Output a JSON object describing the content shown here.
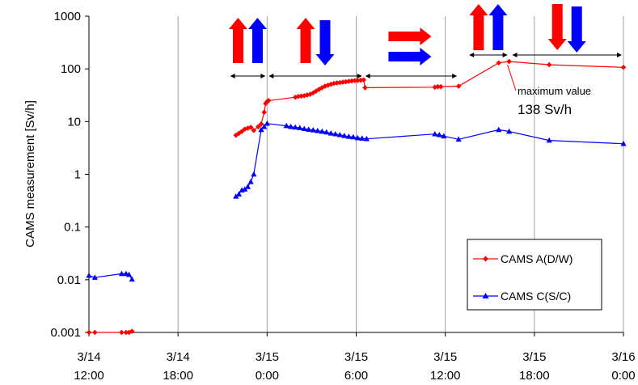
{
  "chart_data": {
    "type": "line",
    "title": "",
    "xlabel": "",
    "ylabel": "CAMS measurement  [Sv/h]",
    "yscale": "log",
    "ylim": [
      0.001,
      1000
    ],
    "xlim": [
      "3/14 12:00",
      "3/16 0:00"
    ],
    "grid": {
      "vertical": true,
      "horizontal": false
    },
    "legend_position": "bottom-right",
    "y_ticks": [
      "1000",
      "100",
      "10",
      "1",
      "0.1",
      "0.01",
      "0.001"
    ],
    "x_ticks": [
      {
        "date": "3/14",
        "time": "12:00",
        "hour": 0
      },
      {
        "date": "3/14",
        "time": "18:00",
        "hour": 6
      },
      {
        "date": "3/15",
        "time": "0:00",
        "hour": 12
      },
      {
        "date": "3/15",
        "time": "6:00",
        "hour": 18
      },
      {
        "date": "3/15",
        "time": "12:00",
        "hour": 24
      },
      {
        "date": "3/15",
        "time": "18:00",
        "hour": 30
      },
      {
        "date": "3/16",
        "time": "0:00",
        "hour": 36
      }
    ],
    "series": [
      {
        "name": "CAMS A(D/W)",
        "color": "#ff0000",
        "marker": "diamond",
        "segments": [
          [
            [
              0.0,
              0.001
            ],
            [
              0.4,
              0.001
            ],
            [
              2.2,
              0.001
            ],
            [
              2.5,
              0.001
            ],
            [
              2.7,
              0.001
            ],
            [
              2.9,
              0.00105
            ]
          ],
          [
            [
              9.9,
              5.5
            ],
            [
              10.1,
              6.0
            ],
            [
              10.3,
              6.5
            ],
            [
              10.5,
              7.2
            ],
            [
              10.7,
              7.5
            ],
            [
              10.9,
              7.8
            ],
            [
              11.1,
              6.8
            ],
            [
              11.4,
              8.0
            ],
            [
              11.6,
              9.0
            ],
            [
              11.8,
              15.0
            ],
            [
              11.9,
              22.0
            ],
            [
              12.0,
              24.0
            ],
            [
              12.1,
              25.0
            ],
            [
              13.9,
              29.0
            ],
            [
              14.1,
              30.0
            ],
            [
              14.3,
              30.5
            ],
            [
              14.5,
              31.0
            ],
            [
              14.7,
              32.0
            ],
            [
              14.9,
              33.0
            ],
            [
              15.1,
              35.0
            ],
            [
              15.3,
              38.0
            ],
            [
              15.5,
              41.0
            ],
            [
              15.7,
              44.0
            ],
            [
              15.9,
              47.0
            ],
            [
              16.1,
              49.0
            ],
            [
              16.3,
              51.0
            ],
            [
              16.5,
              53.0
            ],
            [
              16.7,
              54.0
            ],
            [
              16.9,
              55.0
            ],
            [
              17.1,
              56.0
            ],
            [
              17.3,
              57.0
            ],
            [
              17.5,
              58.0
            ],
            [
              17.7,
              59.0
            ],
            [
              17.9,
              60.0
            ],
            [
              18.1,
              60.5
            ],
            [
              18.3,
              61.0
            ],
            [
              18.5,
              62.0
            ],
            [
              18.6,
              44.0
            ],
            [
              23.3,
              45.0
            ],
            [
              23.5,
              46.0
            ],
            [
              23.7,
              46.0
            ],
            [
              24.9,
              47.0
            ],
            [
              27.6,
              130.0
            ],
            [
              28.3,
              138.0
            ],
            [
              31.0,
              120.0
            ],
            [
              36.0,
              107.0
            ]
          ]
        ]
      },
      {
        "name": "CAMS C(S/C)",
        "color": "#0000ff",
        "marker": "triangle",
        "segments": [
          [
            [
              0.0,
              0.012
            ],
            [
              0.4,
              0.011
            ],
            [
              2.2,
              0.013
            ],
            [
              2.5,
              0.013
            ],
            [
              2.7,
              0.0125
            ],
            [
              2.9,
              0.0102
            ]
          ],
          [
            [
              9.9,
              0.38
            ],
            [
              10.1,
              0.42
            ],
            [
              10.3,
              0.5
            ],
            [
              10.5,
              0.52
            ],
            [
              10.7,
              0.58
            ],
            [
              10.9,
              0.72
            ],
            [
              11.1,
              1.0
            ],
            [
              11.6,
              7.0
            ],
            [
              11.8,
              8.0
            ],
            [
              12.0,
              9.2
            ],
            [
              13.3,
              8.3
            ],
            [
              13.6,
              8.0
            ],
            [
              13.9,
              7.8
            ],
            [
              14.2,
              7.6
            ],
            [
              14.5,
              7.3
            ],
            [
              14.8,
              7.1
            ],
            [
              15.1,
              6.9
            ],
            [
              15.4,
              6.7
            ],
            [
              15.7,
              6.5
            ],
            [
              16.0,
              6.3
            ],
            [
              16.3,
              6.0
            ],
            [
              16.6,
              5.8
            ],
            [
              16.9,
              5.6
            ],
            [
              17.2,
              5.4
            ],
            [
              17.5,
              5.2
            ],
            [
              17.8,
              5.1
            ],
            [
              18.1,
              4.9
            ],
            [
              18.4,
              4.8
            ],
            [
              18.7,
              4.7
            ],
            [
              23.3,
              5.8
            ],
            [
              23.6,
              5.6
            ],
            [
              23.9,
              5.3
            ],
            [
              24.9,
              4.6
            ],
            [
              27.6,
              7.0
            ],
            [
              28.3,
              6.5
            ],
            [
              31.0,
              4.4
            ],
            [
              36.0,
              3.8
            ]
          ]
        ]
      }
    ],
    "annotations": {
      "max_label": "maximum value",
      "max_value": "138 Sv/h",
      "max_point": {
        "hour": 28.3,
        "value": 138
      }
    },
    "period_arrows": [
      {
        "start_hour": 9.4,
        "end_hour": 12.0,
        "symbol": "up-red,up-blue"
      },
      {
        "start_hour": 12.0,
        "end_hour": 18.5,
        "symbol": "up-red,down-blue"
      },
      {
        "start_hour": 18.5,
        "end_hour": 24.9,
        "symbol": "right-red,right-blue"
      },
      {
        "start_hour": 25.5,
        "end_hour": 28.3,
        "symbol": "up-red,up-blue"
      },
      {
        "start_hour": 28.4,
        "end_hour": 36.0,
        "symbol": "down-red,down-blue"
      }
    ]
  }
}
